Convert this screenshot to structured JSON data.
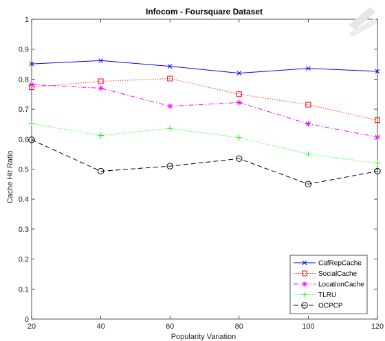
{
  "chart_data": {
    "type": "line",
    "title": "Infocom - Foursquare Dataset",
    "xlabel": "Popularity Variation",
    "ylabel": "Cache Hit Ratio",
    "x": [
      20,
      40,
      60,
      80,
      100,
      120
    ],
    "xlim": [
      20,
      120
    ],
    "ylim": [
      0,
      1
    ],
    "xticks": [
      "20",
      "40",
      "60",
      "80",
      "100",
      "120"
    ],
    "yticks": [
      "0",
      "0.1",
      "0.2",
      "0.3",
      "0.4",
      "0.5",
      "0.6",
      "0.7",
      "0.8",
      "0.9",
      "1"
    ],
    "grid": false,
    "legend_position": "bottom-right",
    "series": [
      {
        "name": "CafRepCache",
        "values": [
          0.851,
          0.862,
          0.843,
          0.82,
          0.836,
          0.826
        ],
        "color": "#0000ff",
        "dash": "solid",
        "marker": "x"
      },
      {
        "name": "SocialCache",
        "values": [
          0.773,
          0.793,
          0.802,
          0.75,
          0.715,
          0.663
        ],
        "color": "#ff0000",
        "dash": "dotted",
        "marker": "square"
      },
      {
        "name": "LocationCache",
        "values": [
          0.782,
          0.77,
          0.71,
          0.722,
          0.651,
          0.607
        ],
        "color": "#ff00ff",
        "dash": "dashdot",
        "marker": "star"
      },
      {
        "name": "TLRU",
        "values": [
          0.652,
          0.612,
          0.636,
          0.605,
          0.55,
          0.52
        ],
        "color": "#00ff00",
        "dash": "dotted",
        "marker": "plus"
      },
      {
        "name": "OCPCP",
        "values": [
          0.598,
          0.493,
          0.51,
          0.535,
          0.45,
          0.493
        ],
        "color": "#000000",
        "dash": "dashed",
        "marker": "circle"
      }
    ]
  }
}
